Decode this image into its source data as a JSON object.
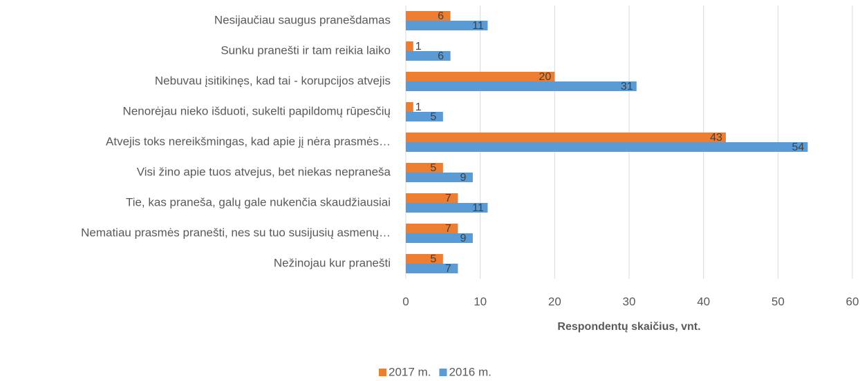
{
  "chart_data": {
    "type": "bar",
    "orientation": "horizontal",
    "xlabel": "Respondentų skaičius, vnt.",
    "categories": [
      "Nesijaučiau saugus pranešdamas",
      "Sunku pranešti ir tam reikia laiko",
      "Nebuvau įsitikinęs, kad tai - korupcijos atvejis",
      "Nenorėjau nieko išduoti, sukelti papildomų rūpesčių",
      "Atvejis toks nereikšmingas, kad apie jį nėra prasmės…",
      "Visi žino apie tuos atvejus, bet niekas nepraneša",
      "Tie, kas praneša, galų gale nukenčia skaudžiausiai",
      "Nematiau prasmės pranešti, nes su tuo susijusių asmenų…",
      "Nežinojau kur pranešti"
    ],
    "series": [
      {
        "name": "2017 m.",
        "color": "#ed7d31",
        "values": [
          6,
          1,
          20,
          1,
          43,
          5,
          7,
          7,
          5
        ]
      },
      {
        "name": "2016 m.",
        "color": "#5b9bd5",
        "values": [
          11,
          6,
          31,
          5,
          54,
          9,
          11,
          9,
          7
        ]
      }
    ],
    "xlim": [
      0,
      60
    ],
    "xticks": [
      0,
      10,
      20,
      30,
      40,
      50,
      60
    ],
    "grid": true,
    "legend": "bottom"
  }
}
